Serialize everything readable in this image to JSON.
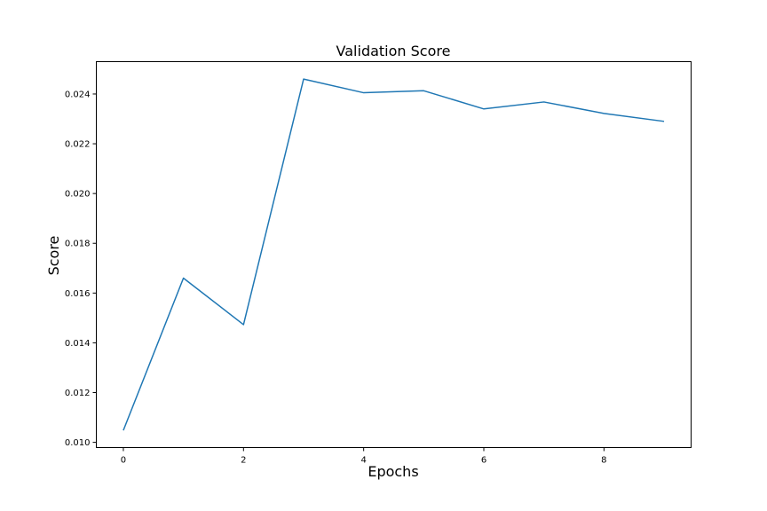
{
  "chart_data": {
    "type": "line",
    "title": "Validation Score",
    "xlabel": "Epochs",
    "ylabel": "Score",
    "x": [
      0,
      1,
      2,
      3,
      4,
      5,
      6,
      7,
      8,
      9
    ],
    "series": [
      {
        "values": [
          0.01048,
          0.0166,
          0.01473,
          0.0246,
          0.02405,
          0.02413,
          0.0234,
          0.02368,
          0.02322,
          0.0229
        ],
        "color": "#1f77b4"
      }
    ],
    "xlim": [
      -0.45,
      9.45
    ],
    "ylim": [
      0.00979,
      0.0253
    ],
    "xticks": [
      0,
      2,
      4,
      6,
      8
    ],
    "xtick_labels": [
      "0",
      "2",
      "4",
      "6",
      "8"
    ],
    "yticks": [
      0.01,
      0.012,
      0.014,
      0.016,
      0.018,
      0.02,
      0.022,
      0.024
    ],
    "ytick_labels": [
      "0.010",
      "0.012",
      "0.014",
      "0.016",
      "0.018",
      "0.020",
      "0.022",
      "0.024"
    ],
    "grid": false,
    "legend": "none"
  }
}
